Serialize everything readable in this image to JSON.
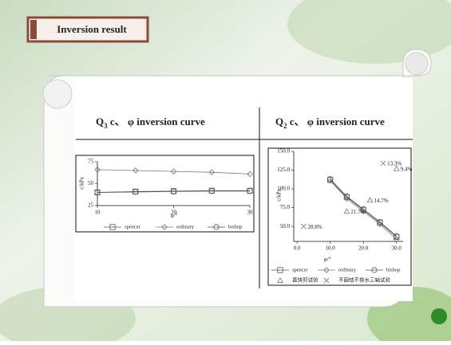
{
  "title": "Inversion result",
  "chart_data": [
    {
      "type": "line",
      "title_parts": [
        "Q",
        "3",
        " c、 φ inversion curve"
      ],
      "xlabel": "φ/°",
      "ylabel": "c/kPa",
      "x": [
        10,
        15,
        20,
        25,
        30
      ],
      "xlim": [
        10,
        30
      ],
      "xticks": [
        10,
        20,
        30
      ],
      "ylim": [
        25,
        75
      ],
      "yticks": [
        25,
        50,
        75
      ],
      "series": [
        {
          "name": "spencer",
          "color": "#555555",
          "marker": "square",
          "values": [
            40,
            41,
            41.5,
            42,
            42
          ]
        },
        {
          "name": "ordinary",
          "color": "#777777",
          "marker": "diamond",
          "values": [
            66,
            65,
            64,
            63,
            61
          ]
        },
        {
          "name": "bishop",
          "color": "#555555",
          "marker": "circle",
          "values": [
            40,
            40.5,
            41,
            41.5,
            41.5
          ]
        }
      ]
    },
    {
      "type": "line",
      "title_parts": [
        "Q",
        "2",
        " c、 φ inversion curve"
      ],
      "xlabel": "φ/°",
      "ylabel": "c/kPa",
      "x": [
        10,
        15,
        20,
        25,
        30
      ],
      "xlim": [
        -1,
        32
      ],
      "xticks": [
        {
          "value": 0,
          "label": "0.0"
        },
        {
          "value": 10,
          "label": "10.0"
        },
        {
          "value": 20,
          "label": "20.0"
        },
        {
          "value": 30,
          "label": "30.0"
        }
      ],
      "ylim": [
        30,
        150
      ],
      "yticks": [
        {
          "value": 50,
          "label": "50.0"
        },
        {
          "value": 75,
          "label": "75.0"
        },
        {
          "value": 100,
          "label": "100.0"
        },
        {
          "value": 125,
          "label": "125.0"
        },
        {
          "value": 150,
          "label": "150.0"
        }
      ],
      "series": [
        {
          "name": "spencer",
          "color": "#555555",
          "marker": "square",
          "values": [
            112,
            89,
            72,
            55,
            36
          ]
        },
        {
          "name": "ordinary",
          "color": "#777777",
          "marker": "diamond",
          "values": [
            111,
            87,
            70,
            53,
            33
          ]
        },
        {
          "name": "bishop",
          "color": "#555555",
          "marker": "circle",
          "values": [
            113,
            90,
            73,
            56,
            37
          ]
        },
        {
          "name": "直快剪试验",
          "color": "#777777",
          "marker": "triangle",
          "x": [
            15,
            22,
            30
          ],
          "values": [
            70,
            85,
            127
          ],
          "labels": [
            "21.7%",
            "14.7%",
            "9.4%"
          ]
        },
        {
          "name": "不固结不排水三轴试验",
          "color": "#777777",
          "marker": "x",
          "x": [
            2,
            26
          ],
          "values": [
            50,
            134
          ],
          "labels": [
            "28.8%",
            "13.3%"
          ]
        }
      ]
    }
  ]
}
